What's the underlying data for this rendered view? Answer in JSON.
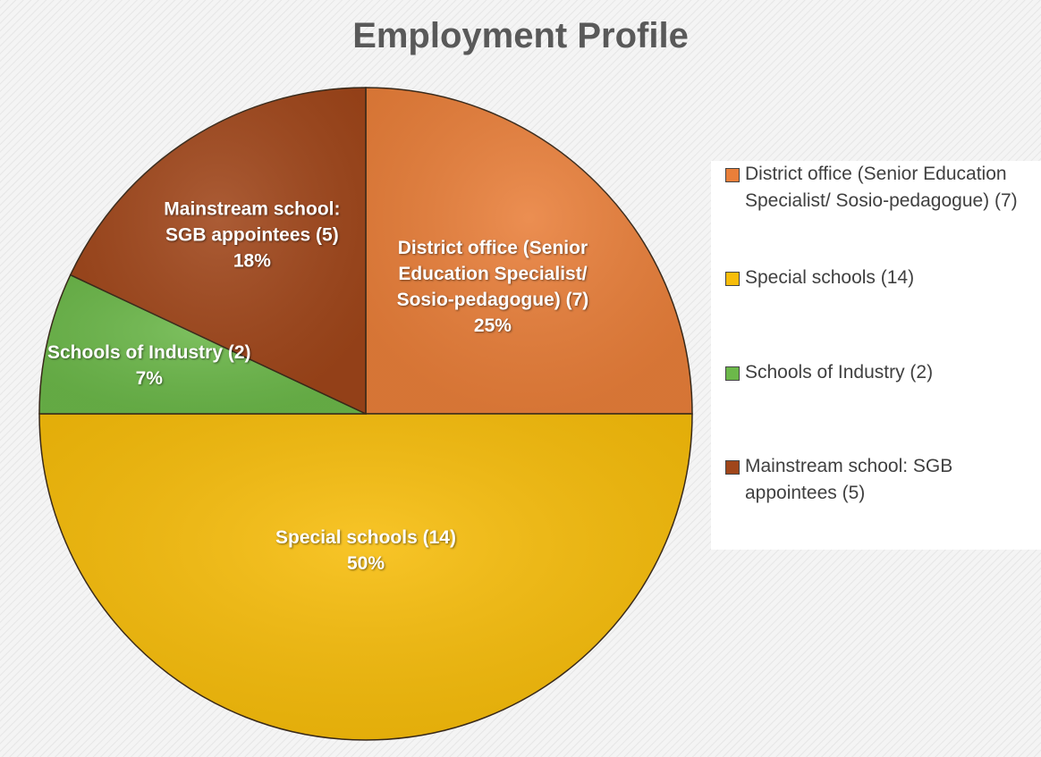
{
  "chart_data": {
    "type": "pie",
    "title": "Employment Profile",
    "categories": [
      "District office (Senior Education Specialist/ Sosio-pedagogue) (7)",
      "Special schools (14)",
      "Schools of Industry (2)",
      "Mainstream school: SGB appointees (5)"
    ],
    "values": [
      25,
      50,
      7,
      18
    ],
    "value_labels": [
      "25%",
      "50%",
      "7%",
      "18%"
    ],
    "colors": [
      "#e97f3a",
      "#f7bd0b",
      "#6cb84a",
      "#a0461a"
    ],
    "legend": "right"
  }
}
